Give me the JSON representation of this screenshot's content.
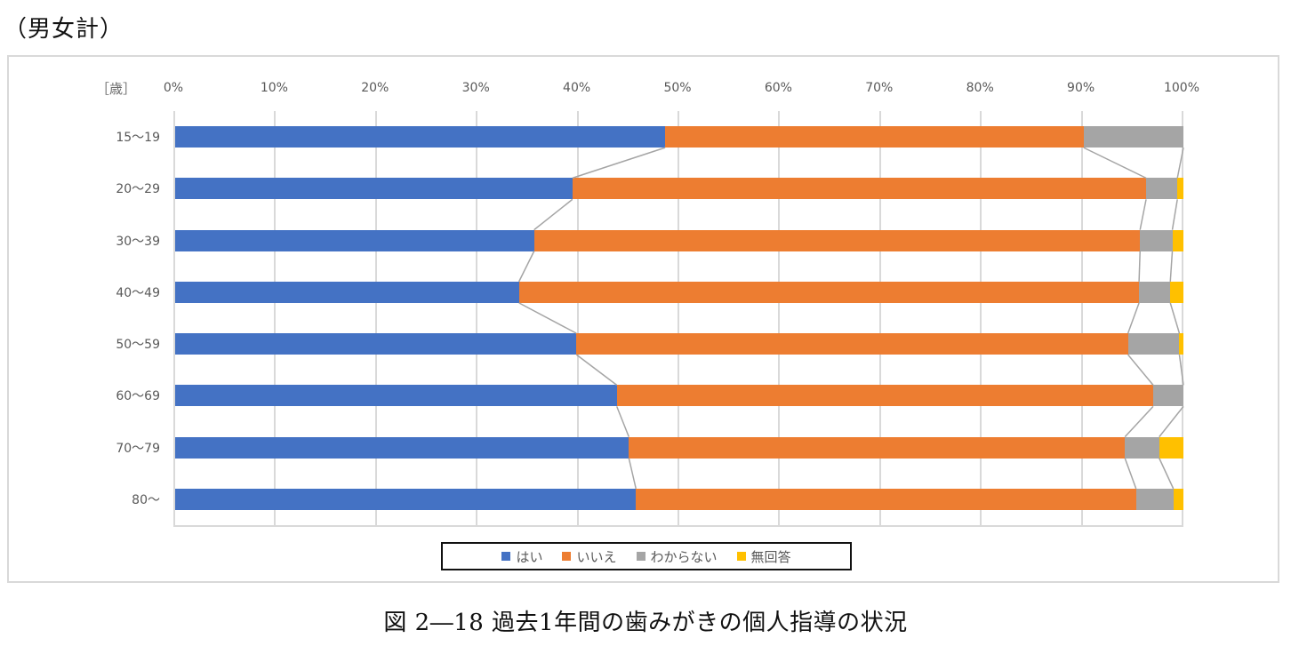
{
  "header": {
    "label": "（男女計）"
  },
  "caption": "図 2―18  過去1年間の歯みがきの個人指導の状況",
  "axis": {
    "unit_label": "［歳］",
    "ticks": [
      "0%",
      "10%",
      "20%",
      "30%",
      "40%",
      "50%",
      "60%",
      "70%",
      "80%",
      "90%",
      "100%"
    ]
  },
  "legend": [
    {
      "label": "はい",
      "color": "#4472c4"
    },
    {
      "label": "いいえ",
      "color": "#ed7d31"
    },
    {
      "label": "わからない",
      "color": "#a5a5a5"
    },
    {
      "label": "無回答",
      "color": "#ffc000"
    }
  ],
  "chart_data": {
    "type": "bar",
    "orientation": "horizontal",
    "stacked": "percent",
    "title": "過去1年間の歯みがきの個人指導の状況",
    "subtitle": "（男女計）",
    "xlabel": "",
    "ylabel": "［歳］",
    "xlim": [
      0,
      100
    ],
    "x_ticks": [
      "0%",
      "10%",
      "20%",
      "30%",
      "40%",
      "50%",
      "60%",
      "70%",
      "80%",
      "90%",
      "100%"
    ],
    "grid": true,
    "legend_position": "bottom",
    "series_lines": true,
    "categories": [
      "15〜19",
      "20〜29",
      "30〜39",
      "40〜49",
      "50〜59",
      "60〜69",
      "70〜79",
      "80〜"
    ],
    "series": [
      {
        "name": "はい",
        "color": "#4472c4",
        "values": [
          48.6,
          39.4,
          35.6,
          34.1,
          39.8,
          43.8,
          45.0,
          45.7
        ]
      },
      {
        "name": "いいえ",
        "color": "#ed7d31",
        "values": [
          41.5,
          56.9,
          60.1,
          61.5,
          54.7,
          53.2,
          49.2,
          49.6
        ]
      },
      {
        "name": "わからない",
        "color": "#a5a5a5",
        "values": [
          9.9,
          3.1,
          3.2,
          3.1,
          5.1,
          3.0,
          3.4,
          3.7
        ]
      },
      {
        "name": "無回答",
        "color": "#ffc000",
        "values": [
          0.0,
          0.6,
          1.1,
          1.3,
          0.4,
          0.0,
          2.4,
          1.0
        ]
      }
    ]
  }
}
